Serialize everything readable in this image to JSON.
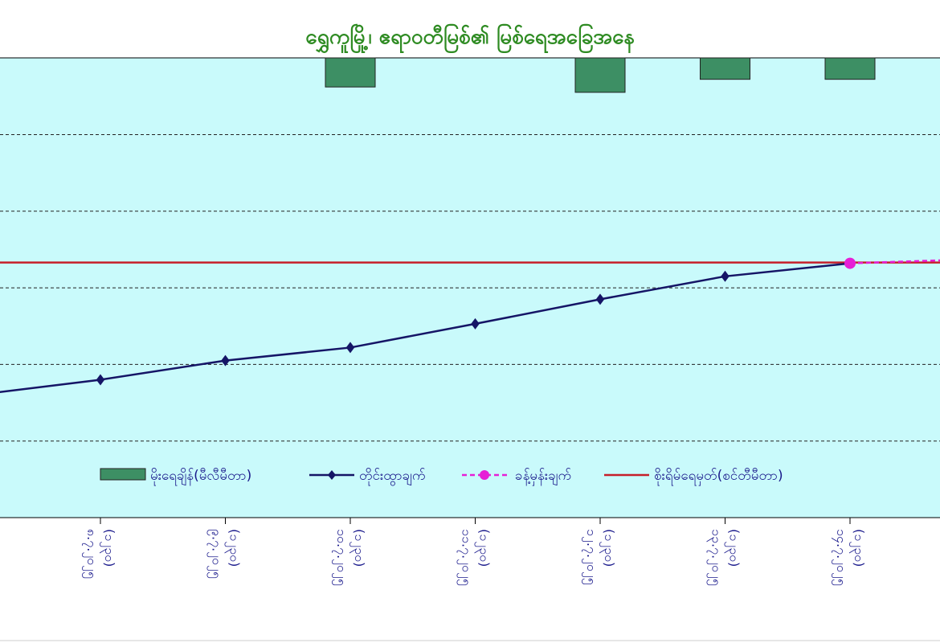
{
  "chart_data": {
    "type": "line",
    "title": "ရွှေကူမြို့၊ ဧရာဝတီမြစ်၏ မြစ်ရေအခြေအနေ",
    "x_labels": [
      "၈.၇.၂၀၂၅\n(၁၂၃၀)",
      "၉.၇.၂၀၂၅\n(၁၂၃၀)",
      "၁၀.၇.၂၀၂၅\n(၁၂၃၀)",
      "၁၁.၇.၂၀၂၅\n(၁၂၃၀)",
      "၁၂.၇.၂၀၂၅\n(၁၂၃၀)",
      "၁၃.၇.၂၀၂၅\n(၁၂၃၀)",
      "၁၄.၇.၂၀၂၅\n(၁၂၃၀)"
    ],
    "x_label_cut": "၂၀၂၅",
    "ylim": [
      0,
      6
    ],
    "grid": true,
    "legend_position": "bottom",
    "colors": {
      "plot_bg": "#c9fafb",
      "rainfall": "#3d8f64",
      "observed": "#151566",
      "forecast": "#e61fd6",
      "danger": "#c61f2a",
      "title": "#2e8b22",
      "legend_text": "#1a1a8c"
    },
    "series": [
      {
        "name": "မိုးရေချိန်(မီလီမီတာ)",
        "type": "bar",
        "marker": "rect",
        "inverted_from_top": true,
        "bar_x": [
          2,
          4,
          5,
          6
        ],
        "values": [
          0.38,
          0.45,
          0.28,
          0.28
        ]
      },
      {
        "name": "တိုင်းထွာချက်",
        "type": "line",
        "marker": "diamond",
        "x": [
          -0.9,
          0,
          1,
          2,
          3,
          4,
          5,
          6
        ],
        "values": [
          1.62,
          1.8,
          2.05,
          2.22,
          2.53,
          2.85,
          3.15,
          3.32
        ]
      },
      {
        "name": "ခန့်မှန်းချက်",
        "type": "line",
        "marker": "circle",
        "dashed": true,
        "x": [
          6,
          6.75
        ],
        "values": [
          3.32,
          3.36
        ]
      },
      {
        "name": "စိုးရိမ်ရေမှတ်(စင်တီမီတာ)",
        "type": "hline",
        "value": 3.33
      }
    ]
  }
}
